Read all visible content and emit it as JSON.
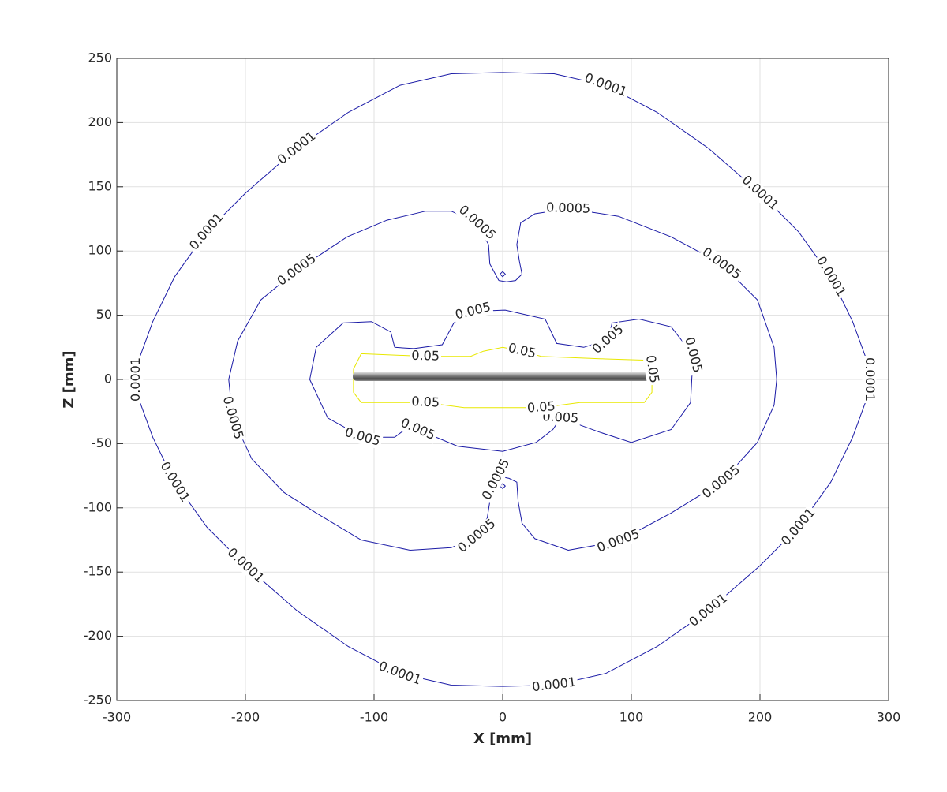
{
  "chart_data": {
    "type": "contour",
    "xlabel": "X [mm]",
    "ylabel": "Z [mm]",
    "xlim": [
      -300,
      300
    ],
    "ylim": [
      -250,
      250
    ],
    "xticks": [
      -300,
      -200,
      -100,
      0,
      100,
      200,
      300
    ],
    "yticks": [
      -250,
      -200,
      -150,
      -100,
      -50,
      0,
      50,
      100,
      150,
      200,
      250
    ],
    "grid": true,
    "series": [
      {
        "level": 0.0001,
        "color": "#1a1aa6",
        "x": [
          0,
          40,
          80,
          120,
          160,
          200,
          230,
          255,
          272,
          283,
          285,
          283,
          272,
          255,
          230,
          200,
          160,
          120,
          80,
          40,
          0,
          -40,
          -80,
          -120,
          -160,
          -200,
          -230,
          -255,
          -272,
          -283,
          -285,
          -283,
          -272,
          -255,
          -230,
          -200,
          -160,
          -120,
          -80,
          -40,
          0
        ],
        "y": [
          239,
          238,
          229,
          208,
          180,
          145,
          115,
          80,
          45,
          15,
          0,
          -15,
          -45,
          -80,
          -115,
          -145,
          -180,
          -208,
          -229,
          -238,
          -239,
          -238,
          -229,
          -208,
          -180,
          -145,
          -115,
          -80,
          -45,
          -15,
          0,
          15,
          45,
          80,
          115,
          145,
          180,
          208,
          229,
          238,
          239
        ]
      },
      {
        "level": 0.0005,
        "color": "#1a1aa6",
        "x": [
          -3,
          -10,
          -11,
          -20,
          -40,
          -60,
          -90,
          -121,
          -160,
          -188,
          -206,
          -213,
          -210,
          -195,
          -170,
          -145,
          -110,
          -72,
          -40,
          -20,
          -12,
          -10,
          -5,
          0,
          5,
          11,
          12,
          15,
          25,
          51,
          90,
          131,
          170,
          198,
          211,
          213,
          211,
          198,
          170,
          131,
          90,
          51,
          25,
          14,
          11,
          13,
          15,
          10,
          3,
          -3,
          null,
          -2,
          0,
          2,
          0,
          -2,
          null,
          -2,
          0,
          2,
          0,
          -2
        ],
        "y": [
          77,
          90,
          105,
          122,
          131,
          131,
          124,
          111,
          85,
          62,
          30,
          0,
          -30,
          -62,
          -88,
          -104,
          -125,
          -133,
          -131,
          -122,
          -108,
          -95,
          -78,
          -76,
          -77,
          -80,
          -95,
          -112,
          -124,
          -133,
          -126,
          -104,
          -80,
          -49,
          -20,
          0,
          25,
          62,
          90,
          111,
          127,
          133,
          129,
          122,
          105,
          92,
          82,
          77,
          76,
          77,
          null,
          82,
          84,
          82,
          80,
          82,
          null,
          -83,
          -81,
          -83,
          -85,
          -83
        ]
      },
      {
        "level": 0.005,
        "color": "#1a1aa6",
        "x": [
          -84,
          -69,
          -47,
          -38,
          -23,
          2,
          33,
          42,
          63,
          82,
          85,
          106,
          131,
          148,
          146,
          131,
          100,
          75,
          45,
          39,
          26,
          0,
          -35,
          -66,
          -72,
          -84,
          -109,
          -136,
          -150,
          -145,
          -124,
          -102,
          -87,
          -84
        ],
        "y": [
          25,
          24,
          27,
          44,
          53,
          54,
          47,
          28,
          25,
          31,
          44,
          47,
          41,
          19,
          -18,
          -39,
          -49,
          -41,
          -30,
          -39,
          -49,
          -56,
          -52,
          -39,
          -36,
          -45,
          -45,
          -30,
          0,
          25,
          44,
          45,
          37,
          25
        ]
      },
      {
        "level": 0.05,
        "color": "#e8e800",
        "x": [
          -110,
          -60,
          -25,
          -15,
          0,
          15,
          30,
          80,
          112,
          116,
          116,
          110,
          60,
          30,
          0,
          -30,
          -60,
          -110,
          -116,
          -116,
          -110
        ],
        "y": [
          20,
          18,
          18,
          22,
          25,
          22,
          18,
          16,
          15,
          8,
          -10,
          -18,
          -18,
          -22,
          -22,
          -22,
          -18,
          -18,
          -10,
          8,
          20
        ]
      }
    ]
  }
}
